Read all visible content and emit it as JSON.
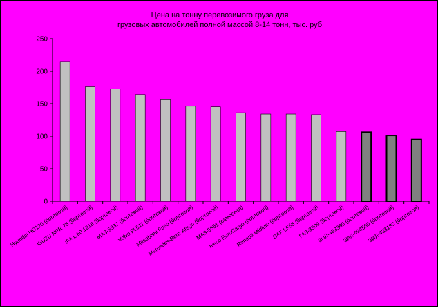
{
  "chart_data": {
    "type": "bar",
    "title_lines": [
      "Цена на тонну перевозимого груза для",
      "грузовых автомобилей полной массой 8-14 тонн, тыс. руб"
    ],
    "xlabel": "",
    "ylabel": "",
    "ylim": [
      0,
      250
    ],
    "yticks": [
      0,
      50,
      100,
      150,
      200,
      250
    ],
    "grid": false,
    "legend": "none",
    "categories": [
      "Hyundai HD120 (бортовой)",
      "ISUZU NPR 75 (бортовой)",
      "IFA L 60 1218 (бортовой)",
      "МАЗ-5337 (бортовой)",
      "Volvo FL611 (бортовой)",
      "Mitsubishi Fuso (бортовой)",
      "Mercedes-Benz Atego (бортовой)",
      "МАЗ-5551 (самосвал)",
      "Iveco EuroCargo (бортовой)",
      "Renault Midlum (бортовой)",
      "DAF LF55 (бортовой)",
      "ГАЗ-3309 (бортовой)",
      "ЗИЛ-433360 (бортовой)",
      "ЗИЛ-494560 (бортовой)",
      "ЗИЛ-433180 (бортовой)"
    ],
    "values": [
      215,
      176,
      173,
      164,
      157,
      146,
      145,
      136,
      134,
      134,
      133,
      107,
      106,
      101,
      95
    ],
    "series_colors": [
      "#C0C0C0",
      "#C0C0C0",
      "#C0C0C0",
      "#C0C0C0",
      "#C0C0C0",
      "#C0C0C0",
      "#C0C0C0",
      "#C0C0C0",
      "#C0C0C0",
      "#C0C0C0",
      "#C0C0C0",
      "#C0C0C0",
      "#808080",
      "#808080",
      "#808080"
    ],
    "highlight_stroke": "#000000",
    "background": "#FF00FF"
  }
}
